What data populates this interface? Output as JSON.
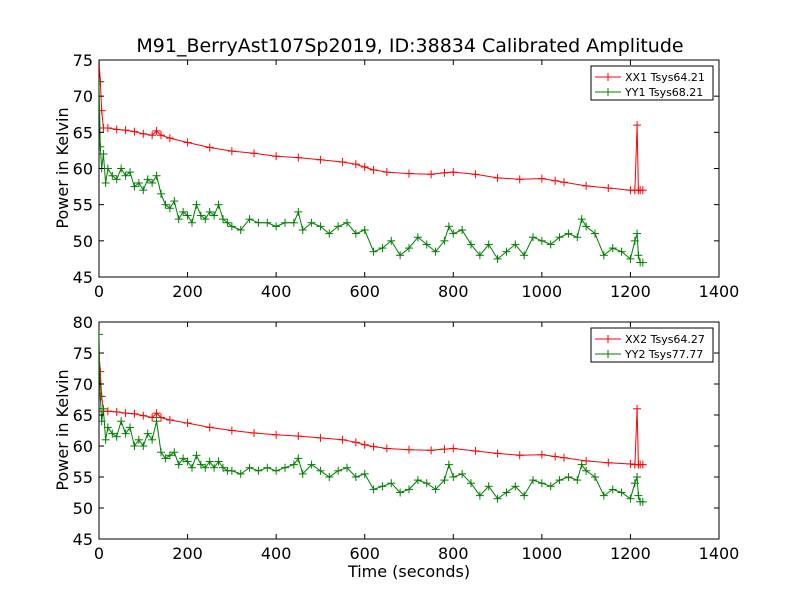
{
  "figure_title": "M91_BerryAst107Sp2019, ID:38834 Calibrated Amplitude",
  "colors": {
    "red_series": "#ff0000",
    "green_series": "#007f00",
    "axes": "#000000",
    "background": "#ffffff"
  },
  "chart_data": [
    {
      "type": "line",
      "title": "M91_BerryAst107Sp2019, ID:38834 Calibrated Amplitude",
      "xlabel": "",
      "ylabel": "Power in Kelvin",
      "xlim": [
        0,
        1400
      ],
      "ylim": [
        45,
        75
      ],
      "xticks": [
        "0",
        "200",
        "400",
        "600",
        "800",
        "1000",
        "1200",
        "1400"
      ],
      "yticks": [
        "45",
        "50",
        "55",
        "60",
        "65",
        "70",
        "75"
      ],
      "grid": false,
      "legend_position": "top-right",
      "marker": "+",
      "series": [
        {
          "name": "XX1 Tsys64.21",
          "color": "#ff0000",
          "x": [
            0,
            3,
            6,
            10,
            20,
            40,
            60,
            80,
            100,
            120,
            130,
            140,
            160,
            200,
            250,
            300,
            350,
            400,
            450,
            500,
            550,
            580,
            600,
            620,
            650,
            700,
            750,
            780,
            800,
            850,
            900,
            950,
            1000,
            1030,
            1050,
            1100,
            1150,
            1200,
            1210,
            1215,
            1218,
            1222,
            1228
          ],
          "y": [
            75,
            72,
            68,
            65.6,
            65.6,
            65.4,
            65.3,
            65.1,
            64.8,
            64.6,
            65.2,
            64.6,
            64.2,
            63.6,
            62.9,
            62.4,
            62.1,
            61.7,
            61.5,
            61.2,
            60.9,
            60.6,
            60.2,
            59.8,
            59.5,
            59.3,
            59.2,
            59.4,
            59.5,
            59.2,
            58.7,
            58.5,
            58.6,
            58.3,
            58.1,
            57.6,
            57.3,
            57.0,
            57.0,
            66.0,
            57.0,
            57.0,
            57.0
          ]
        },
        {
          "name": "YY1 Tsys68.21",
          "color": "#007f00",
          "x": [
            0,
            3,
            6,
            10,
            15,
            20,
            30,
            40,
            50,
            60,
            70,
            80,
            90,
            100,
            110,
            120,
            130,
            140,
            150,
            160,
            170,
            180,
            190,
            200,
            210,
            220,
            230,
            240,
            250,
            260,
            270,
            280,
            290,
            300,
            320,
            340,
            360,
            380,
            400,
            420,
            440,
            450,
            460,
            480,
            500,
            520,
            540,
            560,
            580,
            600,
            620,
            640,
            660,
            680,
            700,
            720,
            740,
            760,
            780,
            790,
            800,
            820,
            840,
            860,
            880,
            900,
            920,
            940,
            960,
            980,
            1000,
            1020,
            1040,
            1060,
            1080,
            1090,
            1100,
            1120,
            1140,
            1160,
            1180,
            1200,
            1210,
            1215,
            1218,
            1222,
            1228
          ],
          "y": [
            72,
            63,
            60,
            62,
            58,
            60,
            59,
            58.5,
            60,
            59,
            59.5,
            57.5,
            58,
            57,
            58.5,
            58,
            59,
            56.5,
            55,
            54.5,
            55.5,
            53,
            54,
            53.5,
            52.5,
            55,
            53.5,
            53,
            54,
            53.5,
            55,
            53,
            52.5,
            52,
            51.5,
            53,
            52.5,
            52.5,
            52,
            52.5,
            52.5,
            54,
            51.5,
            52.5,
            52,
            51,
            52,
            52.5,
            51,
            51.5,
            48.5,
            49,
            50,
            48,
            49,
            50.5,
            49.5,
            48.5,
            50,
            52,
            51,
            51.5,
            49.5,
            48,
            49.5,
            47.5,
            48.5,
            49.5,
            48,
            50.5,
            50,
            49.5,
            50.5,
            51,
            50.5,
            53,
            52,
            51,
            48,
            49,
            48.5,
            47.5,
            50,
            51,
            48,
            47,
            47
          ]
        }
      ]
    },
    {
      "type": "line",
      "title": "",
      "xlabel": "Time (seconds)",
      "ylabel": "Power in Kelvin",
      "xlim": [
        0,
        1400
      ],
      "ylim": [
        45,
        80
      ],
      "xticks": [
        "0",
        "200",
        "400",
        "600",
        "800",
        "1000",
        "1200",
        "1400"
      ],
      "yticks": [
        "45",
        "50",
        "55",
        "60",
        "65",
        "70",
        "75",
        "80"
      ],
      "grid": false,
      "legend_position": "top-right",
      "marker": "+",
      "series": [
        {
          "name": "XX2 Tsys64.27",
          "color": "#ff0000",
          "x": [
            0,
            3,
            6,
            10,
            20,
            40,
            60,
            80,
            100,
            120,
            130,
            140,
            160,
            200,
            250,
            300,
            350,
            400,
            450,
            500,
            550,
            580,
            600,
            620,
            650,
            700,
            750,
            780,
            800,
            850,
            900,
            950,
            1000,
            1030,
            1050,
            1100,
            1150,
            1200,
            1210,
            1215,
            1218,
            1222,
            1228
          ],
          "y": [
            75,
            72,
            68,
            65.6,
            65.6,
            65.5,
            65.3,
            65.2,
            64.9,
            64.6,
            65.3,
            64.6,
            64.2,
            63.7,
            63.0,
            62.5,
            62.1,
            61.8,
            61.6,
            61.3,
            61.0,
            60.6,
            60.2,
            59.9,
            59.6,
            59.4,
            59.3,
            59.5,
            59.6,
            59.2,
            58.8,
            58.5,
            58.6,
            58.3,
            58.1,
            57.6,
            57.3,
            57.1,
            57.0,
            66.0,
            57.0,
            57.0,
            57.0
          ]
        },
        {
          "name": "YY2 Tsys77.77",
          "color": "#007f00",
          "x": [
            0,
            3,
            6,
            10,
            15,
            20,
            30,
            40,
            50,
            60,
            70,
            80,
            90,
            100,
            110,
            120,
            130,
            140,
            150,
            160,
            170,
            180,
            190,
            200,
            210,
            220,
            230,
            240,
            250,
            260,
            270,
            280,
            290,
            300,
            320,
            340,
            360,
            380,
            400,
            420,
            440,
            450,
            460,
            480,
            500,
            520,
            540,
            560,
            580,
            600,
            620,
            640,
            660,
            680,
            700,
            720,
            740,
            760,
            780,
            790,
            800,
            820,
            840,
            860,
            880,
            900,
            920,
            940,
            960,
            980,
            1000,
            1020,
            1040,
            1060,
            1080,
            1090,
            1100,
            1120,
            1140,
            1160,
            1180,
            1200,
            1210,
            1215,
            1218,
            1222,
            1228
          ],
          "y": [
            78,
            68,
            64,
            66,
            61,
            63,
            62,
            61.5,
            64,
            62,
            63,
            60,
            61,
            60,
            62,
            61,
            64,
            59,
            58,
            58.5,
            59,
            57,
            58,
            57.5,
            56.5,
            58.5,
            57,
            56.5,
            57.5,
            56.5,
            57.5,
            56.5,
            56,
            56,
            55.5,
            56.5,
            56,
            56.5,
            56,
            56.5,
            57,
            58,
            55.5,
            57,
            56,
            55,
            56,
            56.5,
            55,
            55.5,
            53,
            53.5,
            54,
            52.5,
            53,
            54.5,
            54,
            53,
            54.5,
            57,
            55,
            55.5,
            54,
            52,
            53.5,
            51.5,
            52.5,
            53.5,
            52,
            54.5,
            54,
            53.5,
            54.5,
            55,
            54.5,
            57,
            56,
            55,
            52,
            53,
            52.5,
            51.5,
            54,
            55,
            52,
            51,
            51
          ]
        }
      ]
    }
  ]
}
